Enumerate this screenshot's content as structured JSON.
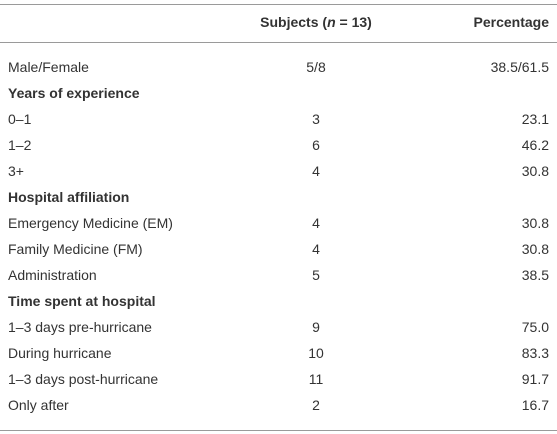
{
  "table": {
    "header": {
      "columns": [
        "",
        {
          "prefix": "Subjects (",
          "italic": "n",
          "suffix": " = 13)"
        },
        "Percentage"
      ]
    },
    "rows": [
      {
        "cells": [
          "Male/Female",
          "5/8",
          "38.5/61.5"
        ]
      },
      {
        "section": "Years of experience"
      },
      {
        "cells": [
          "0–1",
          "3",
          "23.1"
        ]
      },
      {
        "cells": [
          "1–2",
          "6",
          "46.2"
        ]
      },
      {
        "cells": [
          "3+",
          "4",
          "30.8"
        ]
      },
      {
        "section": "Hospital affiliation"
      },
      {
        "cells": [
          "Emergency Medicine (EM)",
          "4",
          "30.8"
        ]
      },
      {
        "cells": [
          "Family Medicine (FM)",
          "4",
          "30.8"
        ]
      },
      {
        "cells": [
          "Administration",
          "5",
          "38.5"
        ]
      },
      {
        "section": "Time spent at hospital"
      },
      {
        "cells": [
          "1–3 days pre-hurricane",
          "9",
          "75.0"
        ]
      },
      {
        "cells": [
          "During hurricane",
          "10",
          "83.3"
        ]
      },
      {
        "cells": [
          "1–3 days post-hurricane",
          "11",
          "91.7"
        ]
      },
      {
        "cells": [
          "Only after",
          "2",
          "16.7"
        ]
      }
    ]
  }
}
